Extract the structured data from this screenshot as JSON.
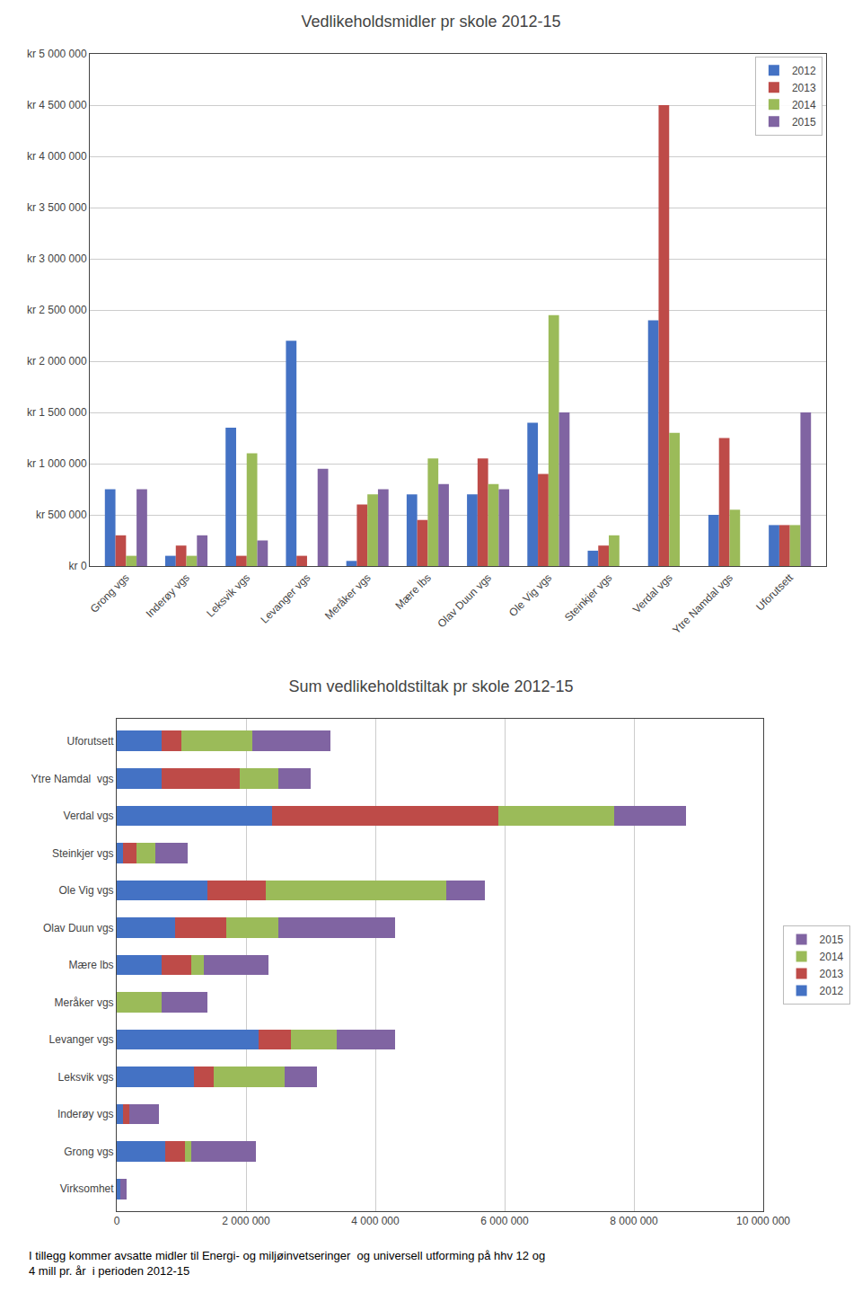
{
  "chart_data": [
    {
      "type": "bar",
      "title": "Vedlikeholdsmidler pr skole 2012-15",
      "categories": [
        "Grong vgs",
        "Inderøy vgs",
        "Leksvik vgs",
        "Levanger vgs",
        "Meråker vgs",
        "Mære lbs",
        "Olav Duun vgs",
        "Ole Vig vgs",
        "Steinkjer vgs",
        "Verdal vgs",
        "Ytre Namdal vgs",
        "Uforutsett"
      ],
      "series": [
        {
          "name": "2012",
          "color": "#4472C4",
          "values": [
            750000,
            100000,
            1350000,
            2200000,
            50000,
            700000,
            700000,
            1400000,
            150000,
            2400000,
            500000,
            400000
          ]
        },
        {
          "name": "2013",
          "color": "#BE4B48",
          "values": [
            300000,
            200000,
            100000,
            100000,
            600000,
            450000,
            1050000,
            900000,
            200000,
            4500000,
            1250000,
            400000
          ]
        },
        {
          "name": "2014",
          "color": "#9BBB59",
          "values": [
            100000,
            100000,
            1100000,
            0,
            700000,
            1050000,
            800000,
            2450000,
            300000,
            1300000,
            550000,
            400000
          ]
        },
        {
          "name": "2015",
          "color": "#8064A2",
          "values": [
            750000,
            300000,
            250000,
            950000,
            750000,
            800000,
            750000,
            1500000,
            0,
            0,
            0,
            1500000
          ]
        }
      ],
      "ylim": [
        0,
        5000000
      ],
      "yticks": [
        {
          "value": 0,
          "label": "kr 0"
        },
        {
          "value": 500000,
          "label": "kr 500 000"
        },
        {
          "value": 1000000,
          "label": "kr 1 000 000"
        },
        {
          "value": 1500000,
          "label": "kr 1 500 000"
        },
        {
          "value": 2000000,
          "label": "kr 2 000 000"
        },
        {
          "value": 2500000,
          "label": "kr 2 500 000"
        },
        {
          "value": 3000000,
          "label": "kr 3 000 000"
        },
        {
          "value": 3500000,
          "label": "kr 3 500 000"
        },
        {
          "value": 4000000,
          "label": "kr 4 000 000"
        },
        {
          "value": 4500000,
          "label": "kr 4 500 000"
        },
        {
          "value": 5000000,
          "label": "kr 5 000 000"
        }
      ],
      "grid": true,
      "legend": "upper right"
    },
    {
      "type": "bar",
      "orientation": "horizontal",
      "stacked": true,
      "title": "Sum vedlikeholdstiltak pr skole 2012-15",
      "categories": [
        "Virksomhet",
        "Grong vgs",
        "Inderøy vgs",
        "Leksvik vgs",
        "Levanger vgs",
        "Meråker vgs",
        "Mære lbs",
        "Olav Duun vgs",
        "Ole Vig vgs",
        "Steinkjer vgs",
        "Verdal vgs",
        "Ytre Namdal  vgs",
        "Uforutsett"
      ],
      "series": [
        {
          "name": "2012",
          "color": "#4472C4",
          "values": [
            50000,
            750000,
            100000,
            1200000,
            2200000,
            0,
            700000,
            900000,
            1400000,
            100000,
            2400000,
            700000,
            700000
          ]
        },
        {
          "name": "2013",
          "color": "#BE4B48",
          "values": [
            0,
            300000,
            100000,
            300000,
            500000,
            0,
            450000,
            800000,
            900000,
            200000,
            3500000,
            1200000,
            300000
          ]
        },
        {
          "name": "2014",
          "color": "#9BBB59",
          "values": [
            0,
            100000,
            0,
            1100000,
            700000,
            700000,
            200000,
            800000,
            2800000,
            300000,
            1800000,
            600000,
            1100000
          ]
        },
        {
          "name": "2015",
          "color": "#8064A2",
          "values": [
            100000,
            1000000,
            450000,
            500000,
            900000,
            700000,
            1000000,
            1800000,
            600000,
            500000,
            1100000,
            500000,
            1200000
          ]
        }
      ],
      "xlim": [
        0,
        10000000
      ],
      "xticks": [
        0,
        {
          "value": 2000000,
          "label": "2 000 000"
        },
        {
          "value": 4000000,
          "label": "4 000 000"
        },
        {
          "value": 6000000,
          "label": "6 000 000"
        },
        {
          "value": 8000000,
          "label": "8 000 000"
        },
        {
          "value": 10000000,
          "label": "10 000 000"
        }
      ],
      "grid": true,
      "legend": "right",
      "annotations": [
        "I tillegg kommer avsatte midler til Energi- og miljøinvetseringer  og universell utforming på hhv 12 og\n4 mill pr. år  i perioden 2012-15"
      ]
    }
  ]
}
